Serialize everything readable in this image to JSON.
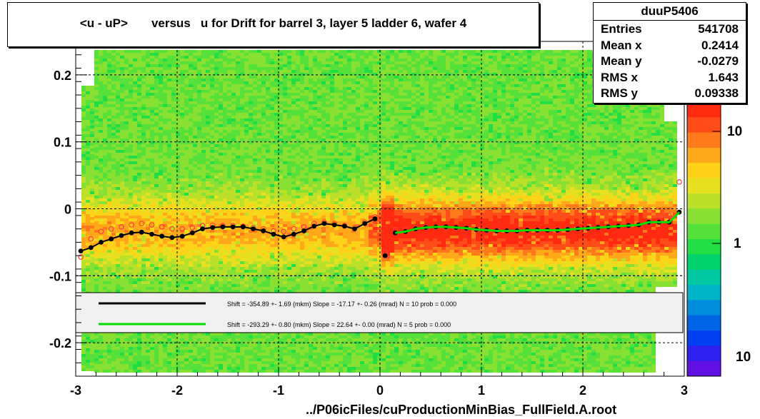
{
  "title": "<u - uP>       versus   u for Drift for barrel 3, layer 5 ladder 6, wafer 4",
  "footer": "../P06icFiles/cuProductionMinBias_FullField.A.root",
  "stats": {
    "name": "duuP5406",
    "rows": [
      {
        "label": "Entries",
        "value": "541708"
      },
      {
        "label": "Mean x",
        "value": "0.2414"
      },
      {
        "label": "Mean y",
        "value": "-0.0279"
      },
      {
        "label": "RMS x",
        "value": "1.643"
      },
      {
        "label": "RMS y",
        "value": "0.09338"
      }
    ]
  },
  "legend": [
    {
      "color": "#000000",
      "text": "Shift =  -354.89 +- 1.69 (mkm) Slope =   -17.17 +- 0.26 (mrad)  N = 10 prob = 0.000"
    },
    {
      "color": "#00dd00",
      "text": "Shift =  -293.29 +- 0.80 (mkm) Slope =    22.64 +- 0.00 (mrad)  N = 5 prob = 0.000"
    }
  ],
  "colorbar_labels": [
    "10",
    "1",
    "10"
  ],
  "chart_data": {
    "type": "heatmap",
    "title": "<u - uP>       versus   u for Drift for barrel 3, layer 5 ladder 6, wafer 4",
    "xlim": [
      -3,
      3
    ],
    "ylim": [
      -0.25,
      0.25
    ],
    "x_ticks": [
      "-3",
      "-2",
      "-1",
      "0",
      "1",
      "2",
      "3"
    ],
    "y_ticks": [
      "-0.2",
      "-0.1",
      "0",
      "0.1",
      "0.2"
    ],
    "grid": true,
    "colorbar": "log",
    "profile_black_points": {
      "x": [
        -2.95,
        -2.85,
        -2.75,
        -2.65,
        -2.55,
        -2.45,
        -2.35,
        -2.25,
        -2.15,
        -2.05,
        -1.95,
        -1.85,
        -1.75,
        -1.65,
        -1.55,
        -1.45,
        -1.35,
        -1.25,
        -1.15,
        -1.05,
        -0.95,
        -0.85,
        -0.75,
        -0.65,
        -0.55,
        -0.45,
        -0.35,
        -0.25,
        -0.15,
        -0.05,
        0.05,
        0.15,
        0.25,
        0.35,
        0.45,
        0.55,
        0.65,
        0.75,
        0.85,
        0.95,
        1.05,
        1.15,
        1.25,
        1.35,
        1.45,
        1.55,
        1.65,
        1.75,
        1.85,
        1.95,
        2.05,
        2.15,
        2.25,
        2.35,
        2.45,
        2.55,
        2.65,
        2.75,
        2.85,
        2.95
      ],
      "y": [
        -0.063,
        -0.058,
        -0.05,
        -0.045,
        -0.04,
        -0.036,
        -0.035,
        -0.038,
        -0.041,
        -0.043,
        -0.041,
        -0.036,
        -0.03,
        -0.028,
        -0.027,
        -0.027,
        -0.027,
        -0.03,
        -0.033,
        -0.038,
        -0.042,
        -0.038,
        -0.033,
        -0.026,
        -0.022,
        -0.024,
        -0.026,
        -0.03,
        -0.022,
        -0.015,
        -0.07,
        -0.036,
        -0.034,
        -0.03,
        -0.028,
        -0.027,
        -0.027,
        -0.028,
        -0.029,
        -0.031,
        -0.032,
        -0.033,
        -0.033,
        -0.033,
        -0.032,
        -0.032,
        -0.032,
        -0.032,
        -0.031,
        -0.03,
        -0.029,
        -0.028,
        -0.027,
        -0.026,
        -0.025,
        -0.024,
        -0.02,
        -0.02,
        -0.02,
        -0.005
      ]
    },
    "profile_red_points": {
      "x": [
        -2.95,
        -2.85,
        -2.75,
        -2.65,
        -2.55,
        -2.45,
        -2.35,
        -2.25,
        -2.15,
        -2.05,
        -1.95,
        -1.85,
        -1.75,
        -1.65,
        -1.55,
        -1.45,
        -1.35,
        -1.25,
        -1.15,
        -1.05,
        -0.95,
        -0.85,
        -0.75,
        -0.65,
        -0.55,
        -0.45,
        -0.35,
        -0.25,
        -0.15,
        -0.05,
        0.05,
        0.15,
        0.25,
        0.35,
        0.45,
        0.55,
        0.65,
        0.75,
        0.85,
        0.95,
        1.05,
        1.15,
        1.25,
        1.35,
        1.45,
        1.55,
        1.65,
        1.75,
        1.85,
        1.95,
        2.05,
        2.15,
        2.25,
        2.35,
        2.45,
        2.55,
        2.65,
        2.75,
        2.85,
        2.95
      ],
      "y": [
        -0.072,
        -0.045,
        -0.034,
        -0.03,
        -0.027,
        -0.024,
        -0.022,
        -0.024,
        -0.027,
        -0.03,
        -0.03,
        -0.028,
        -0.025,
        -0.025,
        -0.025,
        -0.025,
        -0.026,
        -0.028,
        -0.03,
        -0.033,
        -0.034,
        -0.03,
        -0.027,
        -0.022,
        -0.02,
        -0.022,
        -0.025,
        -0.028,
        -0.02,
        -0.012,
        -0.065,
        -0.032,
        -0.031,
        -0.029,
        -0.028,
        -0.027,
        -0.028,
        -0.029,
        -0.03,
        -0.031,
        -0.032,
        -0.033,
        -0.033,
        -0.033,
        -0.032,
        -0.032,
        -0.032,
        -0.032,
        -0.031,
        -0.03,
        -0.029,
        -0.028,
        -0.027,
        -0.026,
        -0.025,
        -0.024,
        -0.02,
        -0.016,
        -0.01,
        0.04
      ]
    },
    "fit_black": {
      "x_range": [
        -2.95,
        -0.05
      ],
      "note": "wavy fit curve"
    },
    "fit_green": {
      "x_range": [
        0.05,
        2.95
      ]
    }
  }
}
